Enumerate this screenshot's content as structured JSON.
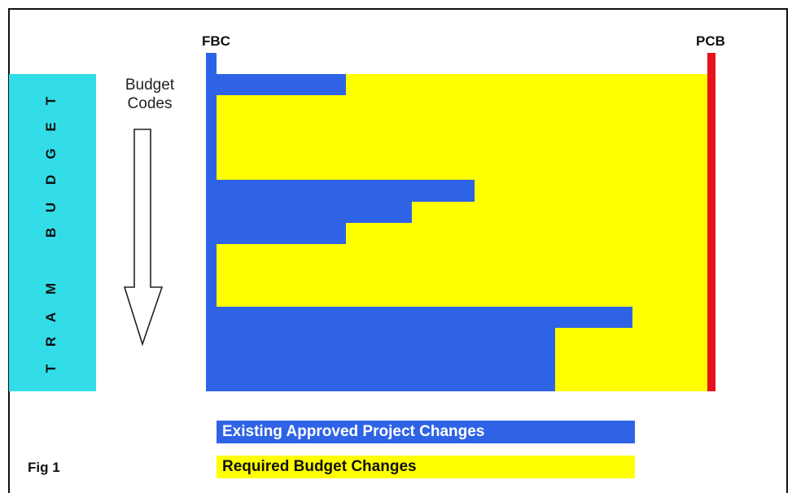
{
  "axis": {
    "left_label": "FBC",
    "right_label": "PCB"
  },
  "side_label": [
    "T",
    "R",
    "A",
    "M",
    "B",
    "U",
    "D",
    "G",
    "E",
    "T"
  ],
  "codes_label": [
    "Budget",
    "Codes"
  ],
  "legend": {
    "existing": "Existing Approved Project Changes",
    "required": "Required Budget Changes"
  },
  "figure_label": "Fig 1",
  "colors": {
    "approved": "#2f63e6",
    "required": "#ffff00",
    "pcb": "#e8121a",
    "side": "#33dde8"
  }
}
